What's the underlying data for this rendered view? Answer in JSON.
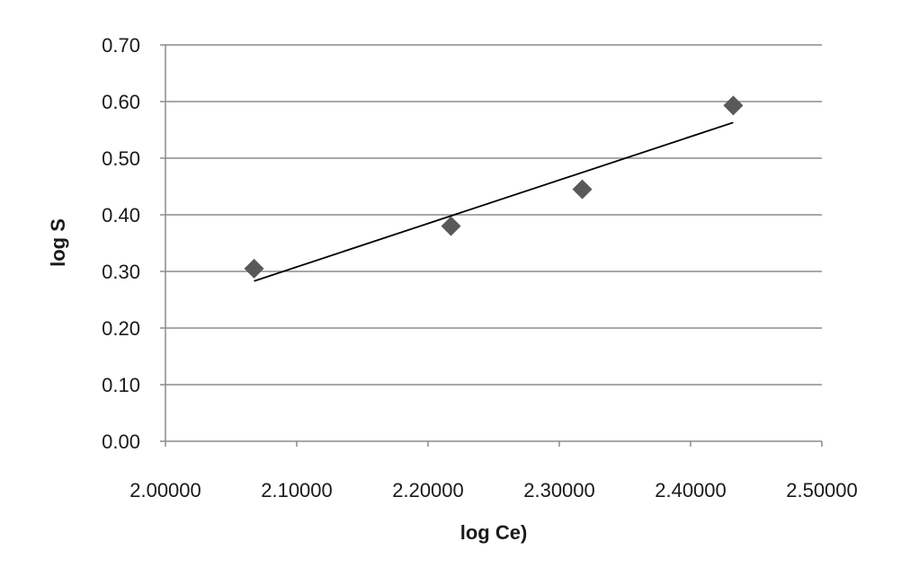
{
  "chart_data": {
    "type": "scatter",
    "title": "",
    "xlabel": "log Ce)",
    "ylabel": "log S",
    "xlim": [
      2.0,
      2.5
    ],
    "ylim": [
      0.0,
      0.7
    ],
    "x_ticks": [
      "2.00000",
      "2.10000",
      "2.20000",
      "2.30000",
      "2.40000",
      "2.50000"
    ],
    "y_ticks": [
      "0.00",
      "0.10",
      "0.20",
      "0.30",
      "0.40",
      "0.50",
      "0.60",
      "0.70"
    ],
    "x_tick_values": [
      2.0,
      2.1,
      2.2,
      2.3,
      2.4,
      2.5
    ],
    "y_tick_values": [
      0.0,
      0.1,
      0.2,
      0.3,
      0.4,
      0.5,
      0.6,
      0.7
    ],
    "grid": "horizontal",
    "legend": "none",
    "series": [
      {
        "marker": "diamond",
        "color": "#595959",
        "points": [
          {
            "x": 2.0675,
            "y": 0.305
          },
          {
            "x": 2.2175,
            "y": 0.38
          },
          {
            "x": 2.3175,
            "y": 0.445
          },
          {
            "x": 2.4325,
            "y": 0.593
          }
        ]
      }
    ],
    "trendline": {
      "type": "linear",
      "color": "#000000",
      "points": [
        {
          "x": 2.0675,
          "y": 0.283
        },
        {
          "x": 2.4325,
          "y": 0.563
        }
      ]
    }
  }
}
